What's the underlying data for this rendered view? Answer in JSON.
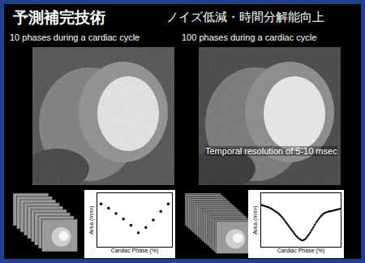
{
  "title": "予測補完技術",
  "subtitle": "ノイズ低減・時間分解能向上",
  "panels": [
    {
      "label": "10 phases during a cardiac cycle"
    },
    {
      "label": "100 phases during a cardiac cycle",
      "note": "Temporal resolution of 5-10 msec"
    }
  ],
  "chart_data": [
    {
      "type": "scatter",
      "x_label": "Cardiac Phase (%)",
      "y_label": "Area (mm²)",
      "x": [
        5,
        15,
        25,
        35,
        45,
        55,
        65,
        75,
        85,
        95
      ],
      "values": [
        80,
        72,
        62,
        52,
        40,
        26,
        36,
        50,
        66,
        80
      ],
      "xlim": [
        0,
        100
      ],
      "ylim": [
        0,
        100
      ],
      "tick_labels": false,
      "grid": false,
      "color": "#000000",
      "marker": "circle"
    },
    {
      "type": "scatter",
      "x_label": "Cardiac Phase (%)",
      "y_label": "Area (mm²)",
      "x": [
        0,
        1,
        2,
        3,
        4,
        5,
        6,
        7,
        8,
        9,
        10,
        11,
        12,
        13,
        14,
        15,
        16,
        17,
        18,
        19,
        20,
        21,
        22,
        23,
        24,
        25,
        26,
        27,
        28,
        29,
        30,
        31,
        32,
        33,
        34,
        35,
        36,
        37,
        38,
        39,
        40,
        41,
        42,
        43,
        44,
        45,
        46,
        47,
        48,
        49,
        50,
        51,
        52,
        53,
        54,
        55,
        56,
        57,
        58,
        59,
        60,
        61,
        62,
        63,
        64,
        65,
        66,
        67,
        68,
        69,
        70,
        71,
        72,
        73,
        74,
        75,
        76,
        77,
        78,
        79,
        80,
        81,
        82,
        83,
        84,
        85,
        86,
        87,
        88,
        89,
        90,
        91,
        92,
        93,
        94,
        95,
        96,
        97,
        98,
        99
      ],
      "values": [
        78,
        78,
        77,
        77,
        76,
        76,
        75,
        75,
        74,
        74,
        73,
        72,
        72,
        71,
        70,
        69,
        68,
        67,
        66,
        65,
        64,
        63,
        62,
        60,
        59,
        57,
        56,
        54,
        52,
        50,
        48,
        46,
        44,
        42,
        40,
        38,
        36,
        34,
        32,
        30,
        28,
        26,
        24,
        22,
        20,
        19,
        17,
        16,
        15,
        14,
        13,
        12,
        12,
        12,
        13,
        14,
        15,
        17,
        19,
        21,
        23,
        25,
        27,
        30,
        32,
        35,
        37,
        40,
        42,
        45,
        47,
        49,
        51,
        53,
        55,
        57,
        58,
        60,
        61,
        62,
        63,
        64,
        64,
        65,
        65,
        66,
        66,
        66,
        67,
        67,
        67,
        68,
        68,
        68,
        69,
        69,
        70,
        70,
        70,
        71
      ],
      "xlim": [
        0,
        100
      ],
      "ylim": [
        0,
        100
      ],
      "tick_labels": false,
      "grid": false,
      "color": "#000000",
      "marker": "circle"
    }
  ]
}
